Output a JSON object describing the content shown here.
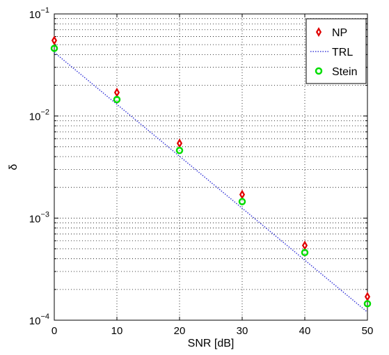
{
  "chart_data": {
    "type": "scatter",
    "title": "",
    "xlabel": "SNR [dB]",
    "ylabel": "δ",
    "xlim": [
      0,
      50
    ],
    "ylim": [
      0.0001,
      0.1
    ],
    "yscale": "log",
    "grid": true,
    "legend_position": "top-right",
    "x_ticks": [
      "0",
      "10",
      "20",
      "30",
      "40",
      "50"
    ],
    "y_ticks": [
      {
        "base": "10",
        "exp": "−4"
      },
      {
        "base": "10",
        "exp": "−3"
      },
      {
        "base": "10",
        "exp": "−2"
      },
      {
        "base": "10",
        "exp": "−1"
      }
    ],
    "series": [
      {
        "name": "NP",
        "marker": "diamond",
        "color": "#e00000",
        "x": [
          0,
          10,
          20,
          30,
          40,
          50
        ],
        "values": [
          0.055,
          0.017,
          0.0054,
          0.0017,
          0.00054,
          0.00017
        ]
      },
      {
        "name": "TRL",
        "marker": "dotted-line",
        "color": "#3a3ad8",
        "x": [
          0,
          50
        ],
        "values": [
          0.042,
          0.00012
        ]
      },
      {
        "name": "Stein",
        "marker": "circle",
        "color": "#00dd00",
        "x": [
          0,
          10,
          20,
          30,
          40,
          50
        ],
        "values": [
          0.046,
          0.0145,
          0.0046,
          0.00145,
          0.00046,
          0.000145
        ]
      }
    ]
  }
}
